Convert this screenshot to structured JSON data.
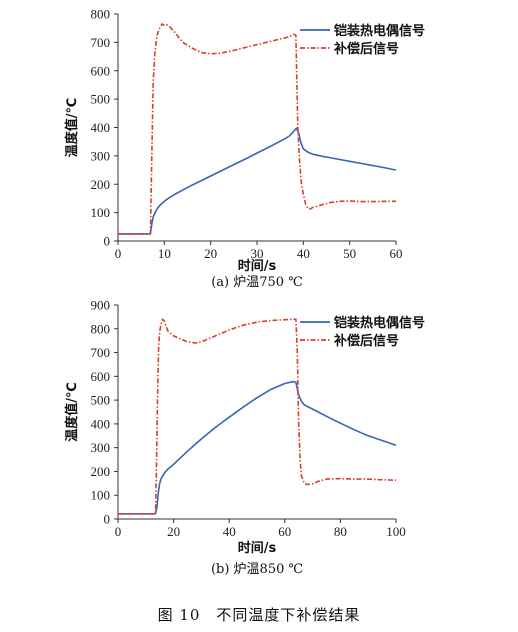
{
  "figure_caption": "图 10　不同温度下补偿结果",
  "series_colors": {
    "armored": "#3565b8",
    "compensated": "#d4402a"
  },
  "chart_data": [
    {
      "type": "line",
      "caption": "(a) 炉温750 ℃",
      "xlabel": "时间/s",
      "ylabel": "温度值/℃",
      "xlim": [
        0,
        60
      ],
      "ylim": [
        0,
        800
      ],
      "xticks": [
        0,
        10,
        20,
        30,
        40,
        50,
        60
      ],
      "yticks": [
        0,
        100,
        200,
        300,
        400,
        500,
        600,
        700,
        800
      ],
      "grid": false,
      "legend": "top-right",
      "series": [
        {
          "name": "铠装热电偶信号",
          "style": "solid",
          "x": [
            0,
            7,
            7.3,
            7.6,
            8,
            8.5,
            9,
            10,
            11,
            12,
            14,
            16,
            18,
            20,
            22,
            24,
            26,
            28,
            30,
            32,
            34,
            36,
            37,
            38,
            38.5,
            39,
            39.5,
            40,
            41,
            42,
            44,
            46,
            48,
            50,
            52,
            54,
            56,
            58,
            60
          ],
          "y": [
            25,
            25,
            60,
            85,
            100,
            115,
            125,
            140,
            152,
            162,
            180,
            197,
            213,
            229,
            245,
            261,
            277,
            293,
            310,
            326,
            343,
            360,
            370,
            388,
            398,
            380,
            345,
            325,
            313,
            306,
            299,
            293,
            287,
            281,
            275,
            269,
            263,
            257,
            250
          ]
        },
        {
          "name": "补偿后信号",
          "style": "dashed",
          "x": [
            0,
            7,
            7.3,
            7.6,
            7.9,
            8.2,
            8.5,
            9,
            9.5,
            10,
            10.5,
            11,
            12,
            13,
            14,
            16,
            18,
            20,
            22,
            24,
            26,
            28,
            30,
            32,
            34,
            36,
            37,
            38,
            38.4,
            38.8,
            39.2,
            39.6,
            40,
            40.5,
            41,
            41.5,
            42,
            43,
            44,
            46,
            48,
            50,
            52,
            54,
            56,
            58,
            60
          ],
          "y": [
            25,
            25,
            300,
            560,
            650,
            700,
            730,
            750,
            765,
            760,
            762,
            758,
            740,
            720,
            700,
            680,
            664,
            660,
            662,
            668,
            676,
            684,
            692,
            700,
            708,
            716,
            720,
            728,
            725,
            400,
            280,
            200,
            165,
            130,
            115,
            113,
            118,
            122,
            128,
            136,
            140,
            141,
            139,
            139,
            139,
            140,
            140
          ]
        }
      ]
    },
    {
      "type": "line",
      "caption": "(b) 炉温850 ℃",
      "xlabel": "时间/s",
      "ylabel": "温度值/℃",
      "xlim": [
        0,
        100
      ],
      "ylim": [
        0,
        900
      ],
      "xticks": [
        0,
        20,
        40,
        60,
        80,
        100
      ],
      "yticks": [
        0,
        100,
        200,
        300,
        400,
        500,
        600,
        700,
        800,
        900
      ],
      "grid": false,
      "legend": "top-right",
      "series": [
        {
          "name": "铠装热电偶信号",
          "style": "solid",
          "x": [
            0,
            13.5,
            14,
            14.5,
            15,
            15.5,
            16,
            17,
            18,
            20,
            25,
            30,
            35,
            40,
            45,
            50,
            55,
            60,
            63,
            64,
            65,
            66,
            67,
            70,
            75,
            80,
            85,
            90,
            95,
            100
          ],
          "y": [
            22,
            22,
            50,
            110,
            150,
            170,
            180,
            198,
            210,
            230,
            285,
            337,
            385,
            428,
            470,
            510,
            545,
            570,
            578,
            575,
            520,
            495,
            480,
            462,
            432,
            403,
            375,
            350,
            330,
            310
          ]
        },
        {
          "name": "补偿后信号",
          "style": "dashed",
          "x": [
            0,
            13.5,
            13.8,
            14.2,
            14.6,
            15,
            15.5,
            16,
            16.5,
            17,
            18,
            20,
            22,
            25,
            28,
            30,
            35,
            40,
            45,
            50,
            55,
            60,
            63,
            64,
            64.5,
            65,
            65.5,
            66,
            67,
            68,
            70,
            72,
            75,
            80,
            85,
            90,
            95,
            100
          ],
          "y": [
            22,
            22,
            200,
            500,
            720,
            790,
            820,
            840,
            835,
            820,
            790,
            770,
            760,
            745,
            740,
            745,
            770,
            795,
            815,
            828,
            835,
            838,
            840,
            840,
            700,
            400,
            250,
            180,
            150,
            145,
            148,
            158,
            168,
            170,
            168,
            168,
            165,
            163
          ]
        }
      ]
    }
  ]
}
